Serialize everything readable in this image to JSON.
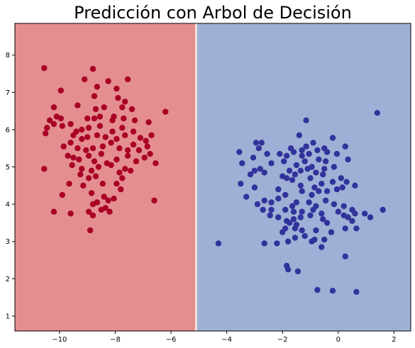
{
  "chart_data": {
    "type": "scatter",
    "title": "Predicción con Arbol de Decisión",
    "xlabel": "",
    "ylabel": "",
    "xlim": [
      -11.6,
      2.6
    ],
    "ylim": [
      0.6,
      8.85
    ],
    "xticks": [
      -10,
      -8,
      -6,
      -4,
      -2,
      0,
      2
    ],
    "xtick_labels": [
      "−10",
      "−8",
      "−6",
      "−4",
      "−2",
      "0",
      "2"
    ],
    "yticks": [
      1,
      2,
      3,
      4,
      5,
      6,
      7,
      8
    ],
    "ytick_labels": [
      "1",
      "2",
      "3",
      "4",
      "5",
      "6",
      "7",
      "8"
    ],
    "grid": false,
    "decision_boundary_x": -5.1,
    "regions": [
      {
        "x_from": -11.6,
        "x_to": -5.1,
        "color": "#e48e90"
      },
      {
        "x_from": -5.1,
        "x_to": 2.6,
        "color": "#9fb0d6"
      }
    ],
    "boundary_color": "#fbeedd",
    "series": [
      {
        "color": "#a90026",
        "points": [
          [
            -10.55,
            7.65
          ],
          [
            -8.8,
            7.63
          ],
          [
            -9.1,
            7.35
          ],
          [
            -8.65,
            7.15
          ],
          [
            -8.25,
            7.3
          ],
          [
            -7.55,
            7.35
          ],
          [
            -7.95,
            7.1
          ],
          [
            -9.95,
            7.05
          ],
          [
            -8.75,
            6.9
          ],
          [
            -7.9,
            6.85
          ],
          [
            -7.65,
            6.75
          ],
          [
            -7.75,
            6.6
          ],
          [
            -9.35,
            6.65
          ],
          [
            -8.7,
            6.55
          ],
          [
            -8.4,
            6.6
          ],
          [
            -8.05,
            6.35
          ],
          [
            -8.75,
            6.3
          ],
          [
            -7.4,
            6.55
          ],
          [
            -10.2,
            6.6
          ],
          [
            -10.35,
            6.25
          ],
          [
            -10.1,
            6.35
          ],
          [
            -9.95,
            6.3
          ],
          [
            -9.6,
            6.15
          ],
          [
            -9.0,
            6.3
          ],
          [
            -8.55,
            6.35
          ],
          [
            -8.1,
            6.25
          ],
          [
            -7.7,
            6.3
          ],
          [
            -7.3,
            6.25
          ],
          [
            -6.8,
            6.2
          ],
          [
            -6.2,
            6.48
          ],
          [
            -10.45,
            6.05
          ],
          [
            -10.2,
            6.15
          ],
          [
            -9.9,
            6.1
          ],
          [
            -9.4,
            5.95
          ],
          [
            -9.2,
            6.0
          ],
          [
            -8.95,
            6.05
          ],
          [
            -8.55,
            6.1
          ],
          [
            -8.1,
            5.95
          ],
          [
            -7.75,
            6.05
          ],
          [
            -7.35,
            5.95
          ],
          [
            -10.5,
            5.9
          ],
          [
            -9.5,
            5.85
          ],
          [
            -9.2,
            5.75
          ],
          [
            -9.0,
            5.8
          ],
          [
            -8.65,
            5.85
          ],
          [
            -8.35,
            5.8
          ],
          [
            -7.95,
            5.75
          ],
          [
            -7.65,
            5.85
          ],
          [
            -7.1,
            5.78
          ],
          [
            -6.9,
            5.7
          ],
          [
            -6.7,
            5.85
          ],
          [
            -9.85,
            5.55
          ],
          [
            -9.6,
            5.65
          ],
          [
            -9.35,
            5.5
          ],
          [
            -9.05,
            5.45
          ],
          [
            -8.8,
            5.5
          ],
          [
            -8.45,
            5.55
          ],
          [
            -8.15,
            5.65
          ],
          [
            -7.85,
            5.5
          ],
          [
            -7.55,
            5.45
          ],
          [
            -7.35,
            5.6
          ],
          [
            -7.15,
            5.45
          ],
          [
            -6.85,
            5.55
          ],
          [
            -9.7,
            5.3
          ],
          [
            -9.5,
            5.25
          ],
          [
            -9.3,
            5.2
          ],
          [
            -8.95,
            5.3
          ],
          [
            -8.75,
            5.15
          ],
          [
            -8.5,
            5.35
          ],
          [
            -8.3,
            5.1
          ],
          [
            -7.95,
            5.2
          ],
          [
            -7.55,
            5.3
          ],
          [
            -7.25,
            5.15
          ],
          [
            -6.95,
            5.25
          ],
          [
            -6.75,
            5.35
          ],
          [
            -6.55,
            5.1
          ],
          [
            -10.55,
            4.95
          ],
          [
            -9.55,
            5.05
          ],
          [
            -9.2,
            4.95
          ],
          [
            -8.85,
            4.9
          ],
          [
            -8.6,
            5.0
          ],
          [
            -8.15,
            5.05
          ],
          [
            -7.85,
            4.85
          ],
          [
            -7.65,
            4.95
          ],
          [
            -7.45,
            4.9
          ],
          [
            -8.7,
            4.75
          ],
          [
            -8.95,
            4.7
          ],
          [
            -7.75,
            4.7
          ],
          [
            -9.25,
            4.8
          ],
          [
            -8.45,
            4.55
          ],
          [
            -9.65,
            4.55
          ],
          [
            -7.95,
            4.55
          ],
          [
            -9.15,
            4.5
          ],
          [
            -7.8,
            4.4
          ],
          [
            -8.85,
            4.3
          ],
          [
            -9.9,
            4.25
          ],
          [
            -8.4,
            4.2
          ],
          [
            -8.05,
            4.15
          ],
          [
            -8.65,
            4.05
          ],
          [
            -8.25,
            4.1
          ],
          [
            -8.8,
            4.0
          ],
          [
            -6.6,
            4.1
          ],
          [
            -8.5,
            3.85
          ],
          [
            -8.2,
            3.8
          ],
          [
            -10.2,
            3.8
          ],
          [
            -9.6,
            3.75
          ],
          [
            -8.35,
            3.9
          ],
          [
            -8.8,
            3.7
          ],
          [
            -8.9,
            3.3
          ],
          [
            -8.95,
            3.8
          ]
        ]
      },
      {
        "color": "#31339b",
        "points": [
          [
            1.4,
            6.45
          ],
          [
            -1.15,
            6.25
          ],
          [
            -0.2,
            5.78
          ],
          [
            -0.9,
            5.65
          ],
          [
            -1.4,
            5.85
          ],
          [
            -0.5,
            5.5
          ],
          [
            -2.75,
            5.65
          ],
          [
            -2.95,
            5.65
          ],
          [
            0.25,
            5.55
          ],
          [
            -1.7,
            5.5
          ],
          [
            -1.3,
            5.45
          ],
          [
            -1.15,
            5.55
          ],
          [
            -0.75,
            5.45
          ],
          [
            -0.4,
            5.4
          ],
          [
            -2.85,
            5.5
          ],
          [
            -2.55,
            5.35
          ],
          [
            -3.55,
            5.4
          ],
          [
            -2.1,
            5.35
          ],
          [
            -1.85,
            5.3
          ],
          [
            -1.6,
            5.4
          ],
          [
            -1.3,
            5.3
          ],
          [
            -1.05,
            5.35
          ],
          [
            -0.05,
            5.35
          ],
          [
            -2.4,
            5.1
          ],
          [
            -1.95,
            5.15
          ],
          [
            -1.5,
            5.05
          ],
          [
            -1.2,
            5.15
          ],
          [
            -0.95,
            5.0
          ],
          [
            -0.7,
            5.2
          ],
          [
            -0.45,
            5.15
          ],
          [
            -0.15,
            5.0
          ],
          [
            0.35,
            5.2
          ],
          [
            -3.45,
            5.1
          ],
          [
            -3.05,
            5.25
          ],
          [
            -2.8,
            4.95
          ],
          [
            -2.65,
            4.85
          ],
          [
            -1.75,
            4.9
          ],
          [
            -1.55,
            4.8
          ],
          [
            -1.35,
            4.9
          ],
          [
            -1.1,
            4.95
          ],
          [
            -0.8,
            4.85
          ],
          [
            -0.55,
            4.8
          ],
          [
            -3.0,
            4.9
          ],
          [
            -3.15,
            4.8
          ],
          [
            -2.0,
            4.75
          ],
          [
            -1.85,
            4.7
          ],
          [
            -1.65,
            4.65
          ],
          [
            -1.0,
            4.7
          ],
          [
            -0.6,
            4.55
          ],
          [
            -0.2,
            4.6
          ],
          [
            0.1,
            4.7
          ],
          [
            0.3,
            4.6
          ],
          [
            -0.5,
            4.95
          ],
          [
            -3.0,
            4.45
          ],
          [
            -2.15,
            4.4
          ],
          [
            -1.35,
            4.5
          ],
          [
            -0.85,
            4.45
          ],
          [
            -0.4,
            4.35
          ],
          [
            -0.05,
            4.4
          ],
          [
            0.15,
            4.45
          ],
          [
            0.6,
            4.5
          ],
          [
            -1.3,
            4.35
          ],
          [
            -0.95,
            4.25
          ],
          [
            -0.7,
            4.35
          ],
          [
            -1.9,
            4.25
          ],
          [
            -3.5,
            4.55
          ],
          [
            -3.3,
            4.2
          ],
          [
            -2.15,
            4.15
          ],
          [
            -1.5,
            4.05
          ],
          [
            -2.9,
            4.0
          ],
          [
            -2.65,
            4.1
          ],
          [
            -2.4,
            4.05
          ],
          [
            -1.65,
            3.95
          ],
          [
            -1.05,
            4.05
          ],
          [
            -0.8,
            3.95
          ],
          [
            -0.45,
            4.1
          ],
          [
            -0.15,
            4.0
          ],
          [
            0.2,
            3.95
          ],
          [
            -2.4,
            3.85
          ],
          [
            -1.9,
            3.85
          ],
          [
            -1.6,
            3.8
          ],
          [
            -1.3,
            3.8
          ],
          [
            -0.9,
            3.85
          ],
          [
            -0.6,
            3.75
          ],
          [
            0.0,
            3.8
          ],
          [
            0.2,
            3.7
          ],
          [
            0.5,
            3.85
          ],
          [
            -2.7,
            3.85
          ],
          [
            -2.45,
            3.7
          ],
          [
            -2.15,
            3.65
          ],
          [
            -1.85,
            3.55
          ],
          [
            -1.6,
            3.6
          ],
          [
            -1.35,
            3.65
          ],
          [
            -1.0,
            3.7
          ],
          [
            -0.55,
            3.6
          ],
          [
            0.35,
            3.65
          ],
          [
            0.6,
            3.75
          ],
          [
            0.95,
            3.75
          ],
          [
            1.6,
            3.85
          ],
          [
            -1.75,
            3.5
          ],
          [
            -1.5,
            3.45
          ],
          [
            -1.9,
            3.35
          ],
          [
            -1.55,
            3.35
          ],
          [
            -0.4,
            3.5
          ],
          [
            0.5,
            3.55
          ],
          [
            1.15,
            3.65
          ],
          [
            -2.0,
            3.25
          ],
          [
            -1.3,
            3.3
          ],
          [
            -0.8,
            3.3
          ],
          [
            -1.2,
            3.15
          ],
          [
            -0.25,
            3.25
          ],
          [
            0.25,
            3.35
          ],
          [
            0.65,
            3.35
          ],
          [
            -0.85,
            3.05
          ],
          [
            -1.55,
            3.1
          ],
          [
            -1.8,
            3.0
          ],
          [
            -2.2,
            2.95
          ],
          [
            -2.65,
            2.95
          ],
          [
            -0.95,
            3.0
          ],
          [
            -0.5,
            3.05
          ],
          [
            -0.6,
            2.85
          ],
          [
            -4.3,
            2.95
          ],
          [
            0.25,
            2.6
          ],
          [
            -1.85,
            2.35
          ],
          [
            -1.8,
            2.25
          ],
          [
            -1.45,
            2.2
          ],
          [
            -0.75,
            1.7
          ],
          [
            -0.2,
            1.68
          ],
          [
            0.65,
            1.65
          ]
        ]
      }
    ]
  }
}
